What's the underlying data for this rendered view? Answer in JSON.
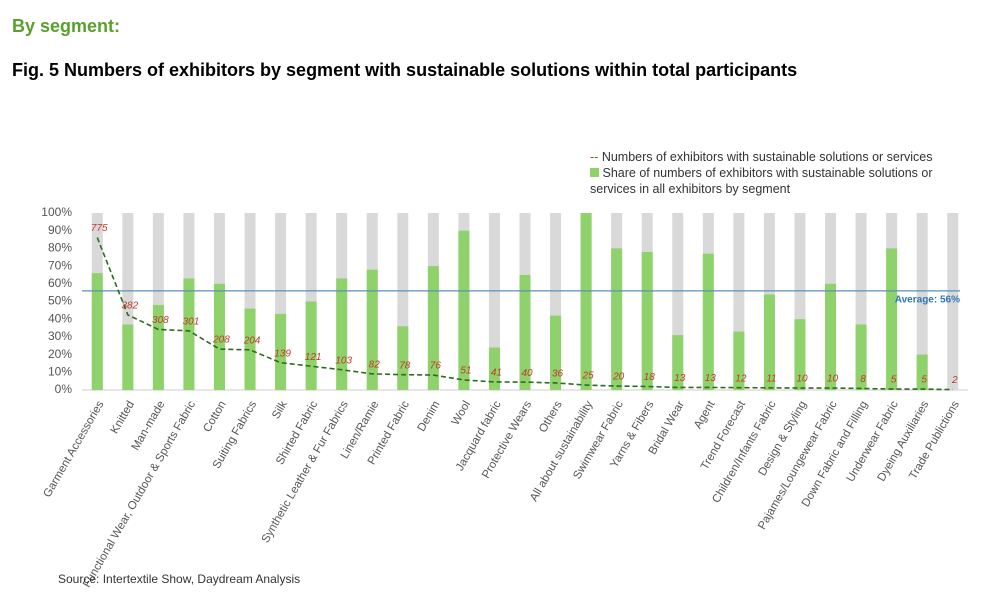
{
  "header": "By segment:",
  "chart_data": {
    "type": "bar-line",
    "title": "Fig. 5 Numbers of exhibitors by segment with sustainable solutions within total participants",
    "categories": [
      "Garment Accessories",
      "Knitted",
      "Man-made",
      "Functional Wear, Outdoor & Sports Fabric",
      "Cotton",
      "Suiting Fabrics",
      "Silk",
      "Shirted Fabric",
      "Synthetic Leather & Fur Fabrics",
      "Linen/Ramie",
      "Printed Fabric",
      "Denim",
      "Wool",
      "Jacquard fabric",
      "Protective Wears",
      "Others",
      "All about sustainability",
      "Swimwear Fabric",
      "Yarns & Fibers",
      "Bridal Wear",
      "Agent",
      "Trend Forecast",
      "Children/Infants Fabric",
      "Design & Styling",
      "Pajames/Loungewear Fabric",
      "Down Fabric and Filling",
      "Underwear Fabric",
      "Dyeing Auxiliaries",
      "Trade Publictions"
    ],
    "series": [
      {
        "name": "Numbers of exhibitors with sustainable solutions or services",
        "type": "line",
        "axis": "y2",
        "color": "#2e6b1f",
        "values": [
          775,
          382,
          308,
          301,
          208,
          204,
          139,
          121,
          103,
          82,
          78,
          76,
          51,
          41,
          40,
          36,
          25,
          20,
          18,
          13,
          13,
          12,
          11,
          10,
          10,
          8,
          5,
          5,
          2
        ]
      },
      {
        "name": "Share of numbers of exhibitors with sustainable solutions or services in all exhibitors by segment",
        "type": "bar",
        "color": "#8fd16a",
        "values": [
          66,
          37,
          48,
          63,
          60,
          46,
          43,
          50,
          63,
          68,
          36,
          70,
          90,
          24,
          65,
          42,
          100,
          80,
          78,
          31,
          77,
          33,
          54,
          40,
          60,
          37,
          80,
          20,
          0
        ]
      }
    ],
    "ylim": [
      0,
      100
    ],
    "yticks": [
      {
        "value": 0,
        "label": "0%"
      },
      {
        "value": 10,
        "label": "10%"
      },
      {
        "value": 20,
        "label": "20%"
      },
      {
        "value": 30,
        "label": "30%"
      },
      {
        "value": 40,
        "label": "40%"
      },
      {
        "value": 50,
        "label": "50%"
      },
      {
        "value": 60,
        "label": "60%"
      },
      {
        "value": 70,
        "label": "70%"
      },
      {
        "value": 80,
        "label": "80%"
      },
      {
        "value": 90,
        "label": "90%"
      },
      {
        "value": 100,
        "label": "100%"
      }
    ],
    "y2lim": [
      0,
      900
    ],
    "average": {
      "value": 56,
      "label": "Average: 56%"
    },
    "legend": "top-right",
    "source": "Source: Intertextile Show, Daydream Analysis"
  }
}
